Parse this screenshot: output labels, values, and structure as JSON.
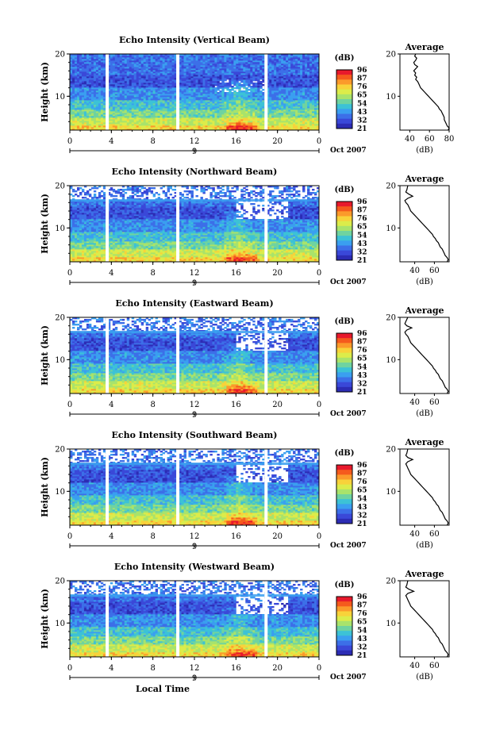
{
  "chart_data": [
    {
      "type": "heatmap",
      "title": "Echo Intensity (Vertical Beam)",
      "ylabel": "Height (km)",
      "ylim": [
        2,
        20
      ],
      "yticks": [
        "20",
        "10"
      ],
      "xticks": [
        "0",
        "4",
        "8",
        "12",
        "16",
        "20",
        "0"
      ],
      "date_mark": "9",
      "date_label": "Oct 2007",
      "colorbar": {
        "unit": "(dB)",
        "levels": [
          "96",
          "87",
          "76",
          "65",
          "54",
          "43",
          "32",
          "21"
        ]
      },
      "profile": {
        "title": "Average",
        "xlabel": "(dB)",
        "xticks": [
          "40",
          "60",
          "80"
        ],
        "xlim": [
          30,
          80
        ],
        "points": [
          [
            46,
            20
          ],
          [
            45,
            19.5
          ],
          [
            47,
            19
          ],
          [
            46,
            18.5
          ],
          [
            44,
            18
          ],
          [
            45,
            17.5
          ],
          [
            48,
            17
          ],
          [
            46,
            16.5
          ],
          [
            44,
            16
          ],
          [
            46,
            15.5
          ],
          [
            45,
            15
          ],
          [
            47,
            14.5
          ],
          [
            46,
            14
          ],
          [
            48,
            13.5
          ],
          [
            49,
            13
          ],
          [
            50,
            12.5
          ],
          [
            51,
            12
          ],
          [
            53,
            11.5
          ],
          [
            55,
            11
          ],
          [
            57,
            10.5
          ],
          [
            59,
            10
          ],
          [
            61,
            9.5
          ],
          [
            63,
            9
          ],
          [
            65,
            8.5
          ],
          [
            67,
            8
          ],
          [
            69,
            7.5
          ],
          [
            70,
            7
          ],
          [
            72,
            6.5
          ],
          [
            73,
            6
          ],
          [
            74,
            5.5
          ],
          [
            75,
            5
          ],
          [
            75,
            4.5
          ],
          [
            76,
            4
          ],
          [
            77,
            3.5
          ],
          [
            78,
            3
          ],
          [
            80,
            2.5
          ],
          [
            79,
            2
          ]
        ]
      }
    },
    {
      "type": "heatmap",
      "title": "Echo Intensity (Northward Beam)",
      "ylabel": "Height (km)",
      "ylim": [
        2,
        20
      ],
      "yticks": [
        "20",
        "10"
      ],
      "xticks": [
        "0",
        "4",
        "8",
        "12",
        "16",
        "20",
        "0"
      ],
      "date_mark": "9",
      "date_label": "Oct 2007",
      "colorbar": {
        "unit": "(dB)",
        "levels": [
          "96",
          "87",
          "76",
          "65",
          "54",
          "43",
          "32",
          "21"
        ]
      },
      "profile": {
        "title": "Average",
        "xlabel": "(dB)",
        "xticks": [
          "40",
          "60"
        ],
        "xlim": [
          25,
          75
        ],
        "points": [
          [
            33,
            20
          ],
          [
            32,
            19
          ],
          [
            31,
            18.5
          ],
          [
            34,
            18
          ],
          [
            38,
            17.5
          ],
          [
            33,
            17
          ],
          [
            30,
            16.5
          ],
          [
            31,
            16
          ],
          [
            33,
            15.5
          ],
          [
            34,
            15
          ],
          [
            35,
            14.5
          ],
          [
            36,
            14
          ],
          [
            38,
            13.5
          ],
          [
            40,
            13
          ],
          [
            42,
            12.5
          ],
          [
            44,
            12
          ],
          [
            46,
            11.5
          ],
          [
            48,
            11
          ],
          [
            50,
            10.5
          ],
          [
            52,
            10
          ],
          [
            54,
            9.5
          ],
          [
            56,
            9
          ],
          [
            58,
            8.5
          ],
          [
            59,
            8
          ],
          [
            61,
            7.5
          ],
          [
            62,
            7
          ],
          [
            64,
            6.5
          ],
          [
            65,
            6
          ],
          [
            66,
            5.5
          ],
          [
            68,
            5
          ],
          [
            69,
            4.5
          ],
          [
            70,
            4
          ],
          [
            71,
            3.5
          ],
          [
            73,
            3
          ],
          [
            74,
            2.5
          ],
          [
            73,
            2
          ]
        ]
      }
    },
    {
      "type": "heatmap",
      "title": "Echo Intensity (Eastward Beam)",
      "ylabel": "Height (km)",
      "ylim": [
        2,
        20
      ],
      "yticks": [
        "20",
        "10"
      ],
      "xticks": [
        "0",
        "4",
        "8",
        "12",
        "16",
        "20",
        "0"
      ],
      "date_mark": "9",
      "date_label": "Oct 2007",
      "colorbar": {
        "unit": "(dB)",
        "levels": [
          "96",
          "87",
          "76",
          "65",
          "54",
          "43",
          "32",
          "21"
        ]
      },
      "profile": {
        "title": "Average",
        "xlabel": "(dB)",
        "xticks": [
          "40",
          "60"
        ],
        "xlim": [
          25,
          75
        ],
        "points": [
          [
            33,
            20
          ],
          [
            31,
            19
          ],
          [
            30,
            18.5
          ],
          [
            32,
            18
          ],
          [
            37,
            17.5
          ],
          [
            32,
            17
          ],
          [
            30,
            16.5
          ],
          [
            31,
            16
          ],
          [
            33,
            15.5
          ],
          [
            34,
            15
          ],
          [
            35,
            14.5
          ],
          [
            36,
            14
          ],
          [
            38,
            13.5
          ],
          [
            40,
            13
          ],
          [
            42,
            12.5
          ],
          [
            44,
            12
          ],
          [
            46,
            11.5
          ],
          [
            48,
            11
          ],
          [
            50,
            10.5
          ],
          [
            52,
            10
          ],
          [
            54,
            9.5
          ],
          [
            56,
            9
          ],
          [
            58,
            8.5
          ],
          [
            59,
            8
          ],
          [
            61,
            7.5
          ],
          [
            62,
            7
          ],
          [
            64,
            6.5
          ],
          [
            65,
            6
          ],
          [
            66,
            5.5
          ],
          [
            68,
            5
          ],
          [
            69,
            4.5
          ],
          [
            70,
            4
          ],
          [
            71,
            3.5
          ],
          [
            73,
            3
          ],
          [
            74,
            2.5
          ],
          [
            73,
            2
          ]
        ]
      }
    },
    {
      "type": "heatmap",
      "title": "Echo Intensity (Southward Beam)",
      "ylabel": "Height (km)",
      "ylim": [
        2,
        20
      ],
      "yticks": [
        "20",
        "10"
      ],
      "xticks": [
        "0",
        "4",
        "8",
        "12",
        "16",
        "20",
        "0"
      ],
      "date_mark": "9",
      "date_label": "Oct 2007",
      "colorbar": {
        "unit": "(dB)",
        "levels": [
          "96",
          "87",
          "76",
          "65",
          "54",
          "43",
          "32",
          "21"
        ]
      },
      "profile": {
        "title": "Average",
        "xlabel": "(dB)",
        "xticks": [
          "40",
          "60"
        ],
        "xlim": [
          25,
          75
        ],
        "points": [
          [
            33,
            20
          ],
          [
            32,
            19
          ],
          [
            31,
            18.5
          ],
          [
            33,
            18
          ],
          [
            38,
            17.5
          ],
          [
            33,
            17
          ],
          [
            31,
            16.5
          ],
          [
            32,
            16
          ],
          [
            33,
            15.5
          ],
          [
            34,
            15
          ],
          [
            35,
            14.5
          ],
          [
            36,
            14
          ],
          [
            38,
            13.5
          ],
          [
            40,
            13
          ],
          [
            42,
            12.5
          ],
          [
            44,
            12
          ],
          [
            46,
            11.5
          ],
          [
            48,
            11
          ],
          [
            50,
            10.5
          ],
          [
            52,
            10
          ],
          [
            54,
            9.5
          ],
          [
            56,
            9
          ],
          [
            58,
            8.5
          ],
          [
            59,
            8
          ],
          [
            61,
            7.5
          ],
          [
            62,
            7
          ],
          [
            64,
            6.5
          ],
          [
            65,
            6
          ],
          [
            66,
            5.5
          ],
          [
            68,
            5
          ],
          [
            69,
            4.5
          ],
          [
            70,
            4
          ],
          [
            71,
            3.5
          ],
          [
            73,
            3
          ],
          [
            74,
            2.5
          ],
          [
            73,
            2
          ]
        ]
      }
    },
    {
      "type": "heatmap",
      "title": "Echo Intensity (Westward Beam)",
      "ylabel": "Height (km)",
      "ylim": [
        2,
        20
      ],
      "yticks": [
        "20",
        "10"
      ],
      "xticks": [
        "0",
        "4",
        "8",
        "12",
        "16",
        "20",
        "0"
      ],
      "date_mark": "9",
      "date_label": "Oct 2007",
      "xlabel": "Local Time",
      "colorbar": {
        "unit": "(dB)",
        "levels": [
          "96",
          "87",
          "76",
          "65",
          "54",
          "43",
          "32",
          "21"
        ]
      },
      "profile": {
        "title": "Average",
        "xlabel": "(dB)",
        "xticks": [
          "40",
          "60"
        ],
        "xlim": [
          25,
          75
        ],
        "points": [
          [
            33,
            20
          ],
          [
            32,
            19
          ],
          [
            31,
            18.5
          ],
          [
            34,
            18
          ],
          [
            39,
            17.5
          ],
          [
            33,
            17
          ],
          [
            31,
            16.5
          ],
          [
            32,
            16
          ],
          [
            33,
            15.5
          ],
          [
            34,
            15
          ],
          [
            35,
            14.5
          ],
          [
            36,
            14
          ],
          [
            38,
            13.5
          ],
          [
            40,
            13
          ],
          [
            42,
            12.5
          ],
          [
            44,
            12
          ],
          [
            46,
            11.5
          ],
          [
            48,
            11
          ],
          [
            50,
            10.5
          ],
          [
            52,
            10
          ],
          [
            54,
            9.5
          ],
          [
            56,
            9
          ],
          [
            58,
            8.5
          ],
          [
            59,
            8
          ],
          [
            61,
            7.5
          ],
          [
            62,
            7
          ],
          [
            64,
            6.5
          ],
          [
            65,
            6
          ],
          [
            66,
            5.5
          ],
          [
            68,
            5
          ],
          [
            69,
            4.5
          ],
          [
            70,
            4
          ],
          [
            71,
            3.5
          ],
          [
            73,
            3
          ],
          [
            74,
            2.5
          ],
          [
            73,
            2
          ]
        ]
      }
    }
  ],
  "colors": {
    "scale": [
      "#e8192c",
      "#f55a1d",
      "#fb9a2b",
      "#f8d23a",
      "#dcec4a",
      "#a9e36b",
      "#6fd3a0",
      "#3cc2d6",
      "#3a9ff0",
      "#3c6fe8",
      "#3a48d8",
      "#2c2cb4"
    ]
  }
}
